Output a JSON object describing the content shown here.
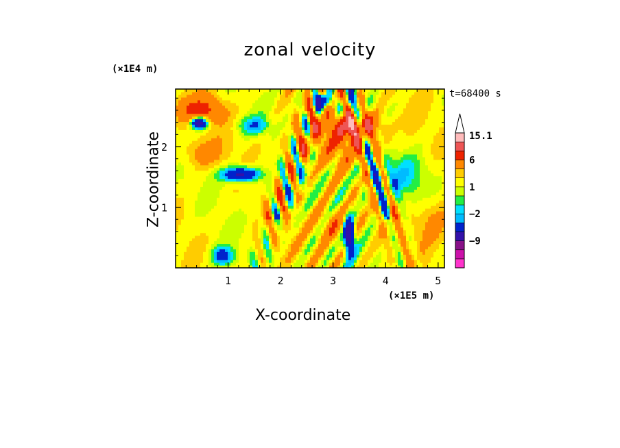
{
  "chart_data": {
    "type": "heatmap",
    "title": "zonal velocity",
    "xlabel": "X-coordinate",
    "ylabel": "Z-coordinate",
    "x_unit": "(×1E5 m)",
    "z_unit": "(×1E4 m)",
    "time_label": "t=68400 s",
    "xlim": [
      0,
      5.12
    ],
    "ylim": [
      0,
      2.95
    ],
    "x_ticks": [
      "1",
      "2",
      "3",
      "4",
      "5"
    ],
    "x_tick_values": [
      1,
      2,
      3,
      4,
      5
    ],
    "y_ticks": [
      "1",
      "2"
    ],
    "y_tick_values": [
      1,
      2
    ],
    "colorbar": {
      "labels": [
        "15.1",
        "6",
        "1",
        "−2",
        "−9"
      ],
      "label_values": [
        15.1,
        6,
        1,
        -2,
        -9
      ],
      "levels": [
        -15,
        -12,
        -9,
        -6,
        -3,
        -2,
        -1,
        0,
        1,
        2,
        3,
        6,
        9,
        12,
        15.1
      ],
      "colors": [
        "#ff33cc",
        "#cc11aa",
        "#881188",
        "#3311aa",
        "#0022cc",
        "#00bbff",
        "#00e0ff",
        "#22ee44",
        "#ccff00",
        "#ffff00",
        "#ffcc00",
        "#ff8800",
        "#ee2200",
        "#ee5555",
        "#ffbbbb"
      ],
      "extend_top": true
    }
  }
}
